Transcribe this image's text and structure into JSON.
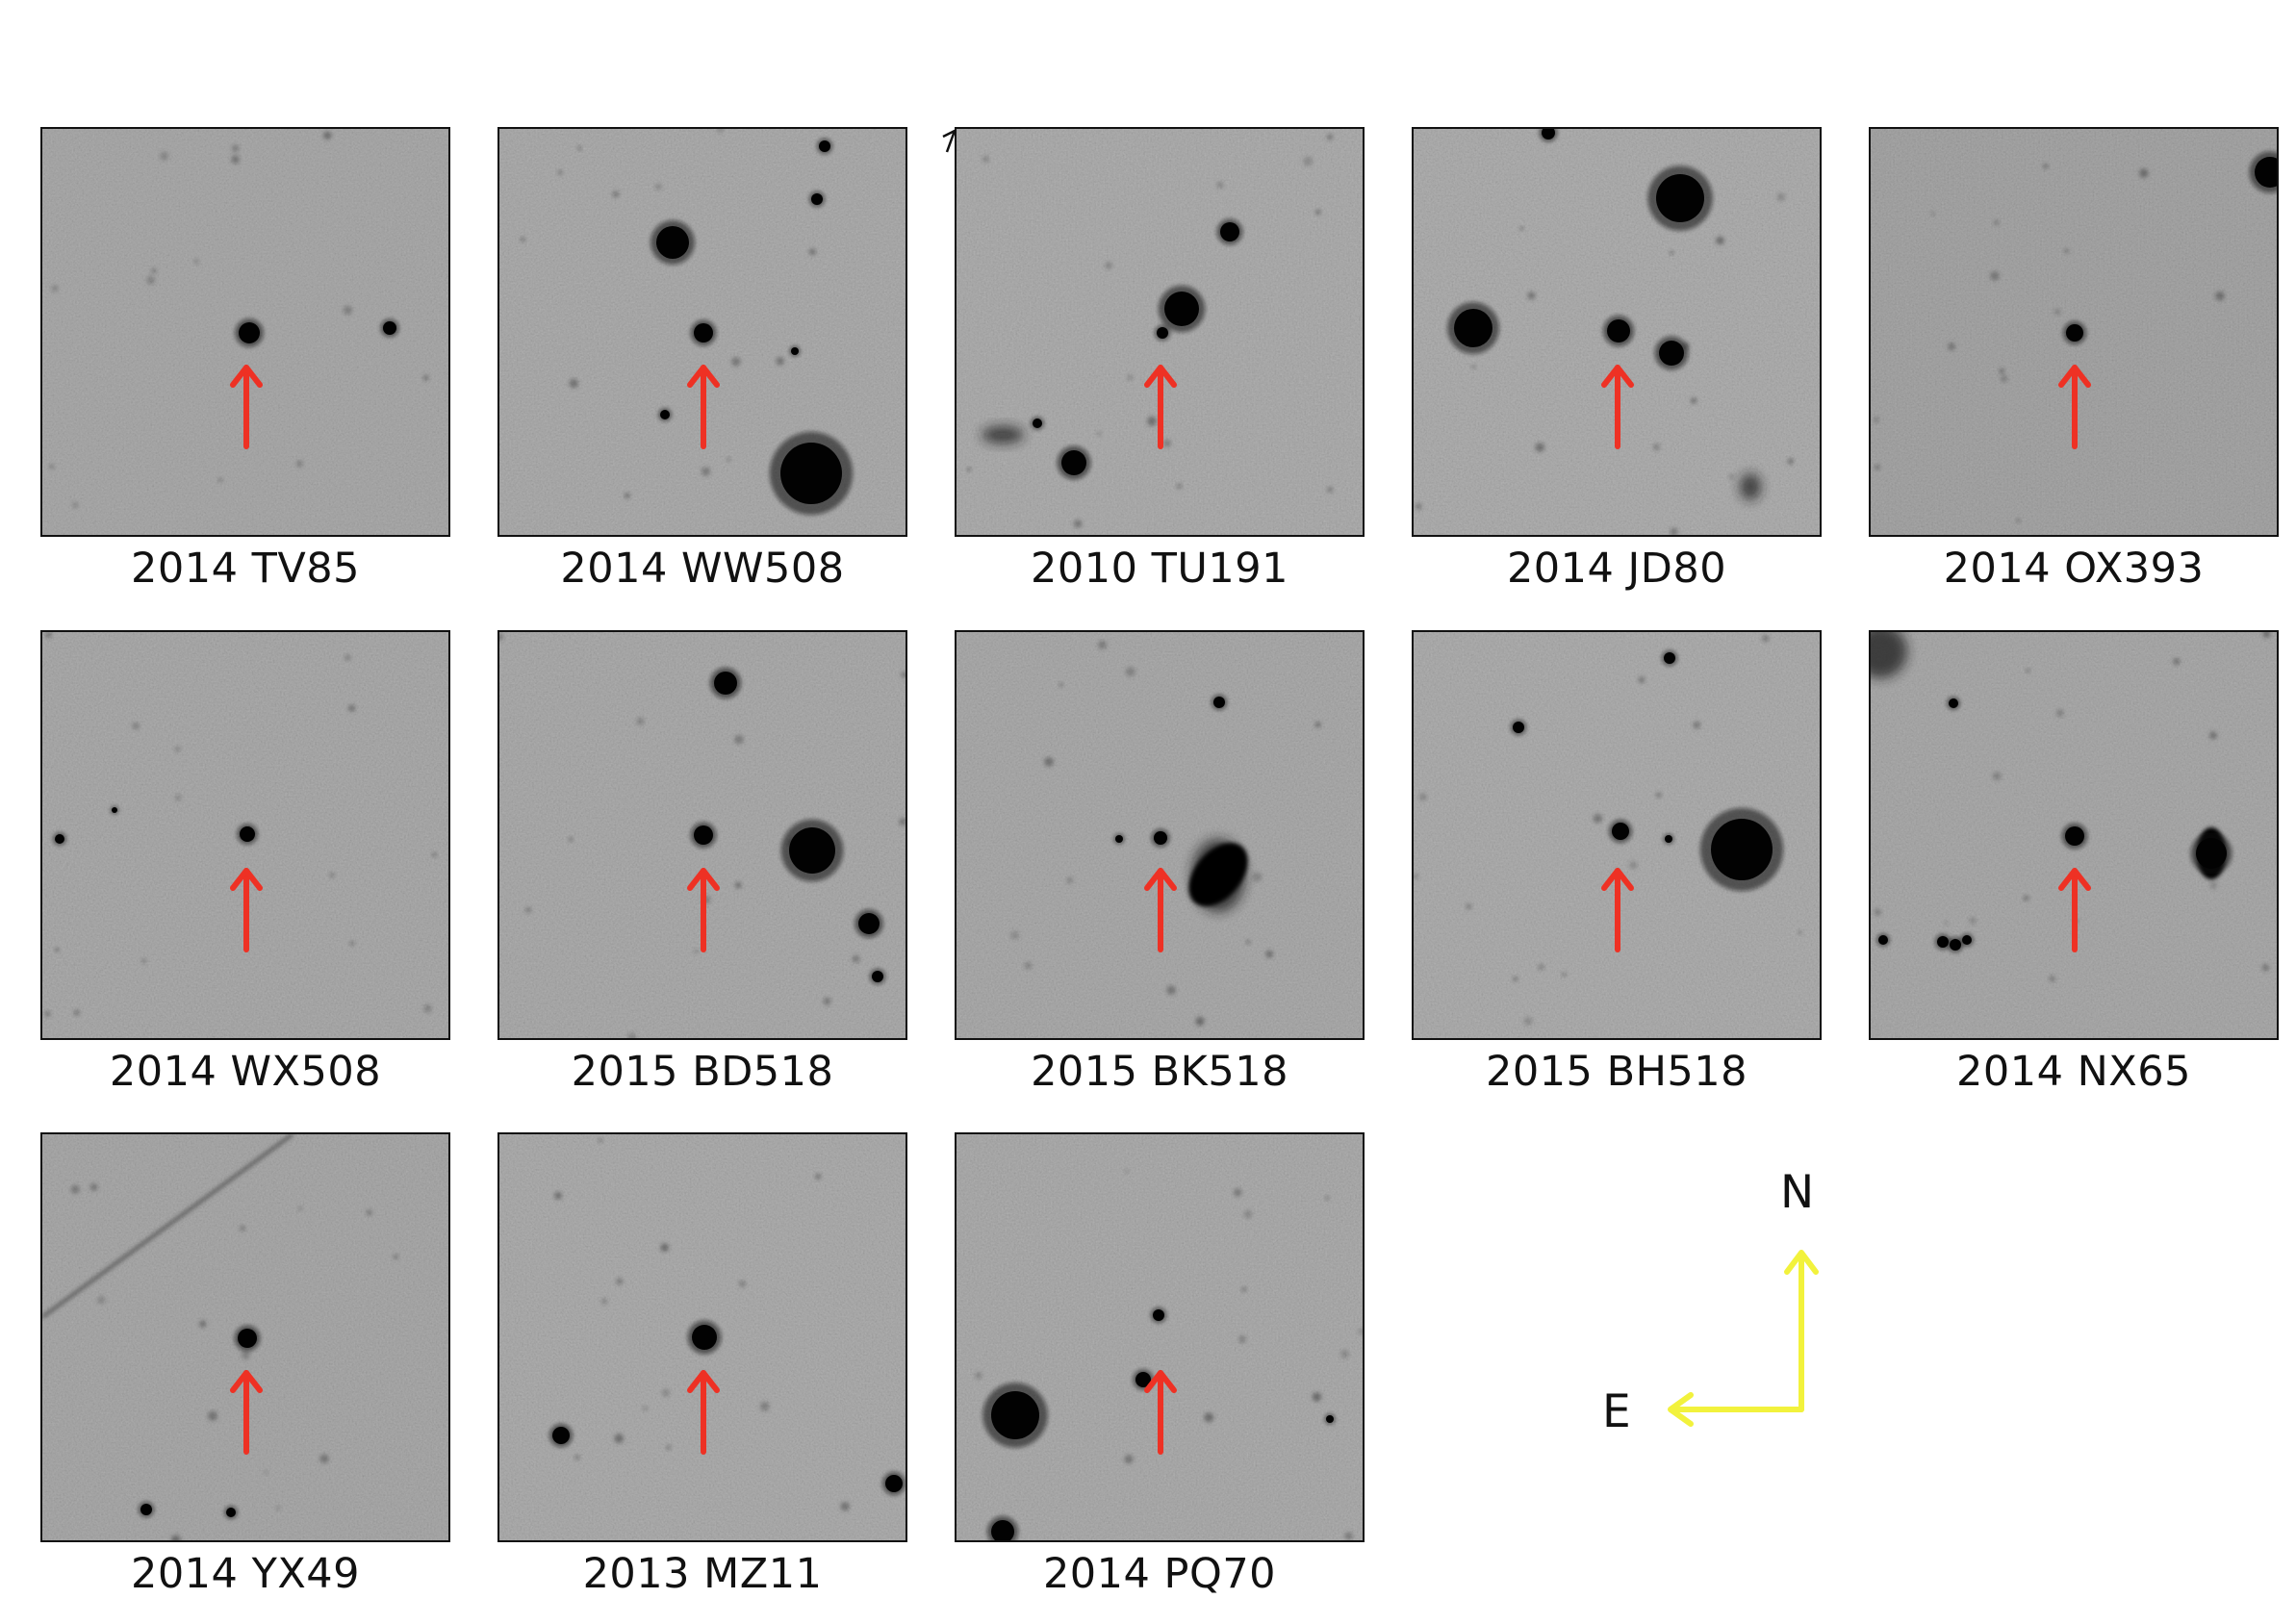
{
  "objects": [
    {
      "name": "2014 TV85"
    },
    {
      "name": "2014 WW508"
    },
    {
      "name": "2010 TU191"
    },
    {
      "name": "2014 JD80"
    },
    {
      "name": "2014 OX393"
    },
    {
      "name": "2014 WX508"
    },
    {
      "name": "2015 BD518"
    },
    {
      "name": "2015 BK518"
    },
    {
      "name": "2015 BH518"
    },
    {
      "name": "2014 NX65"
    },
    {
      "name": "2014 YX49"
    },
    {
      "name": "2013 MZ11"
    },
    {
      "name": "2014 PQ70"
    }
  ],
  "compass": {
    "north_label": "N",
    "east_label": "E",
    "arrow_color": "#f2f23c"
  },
  "colors": {
    "marker_arrow": "#ee3124",
    "stamp_background": "#a2a2a2"
  }
}
